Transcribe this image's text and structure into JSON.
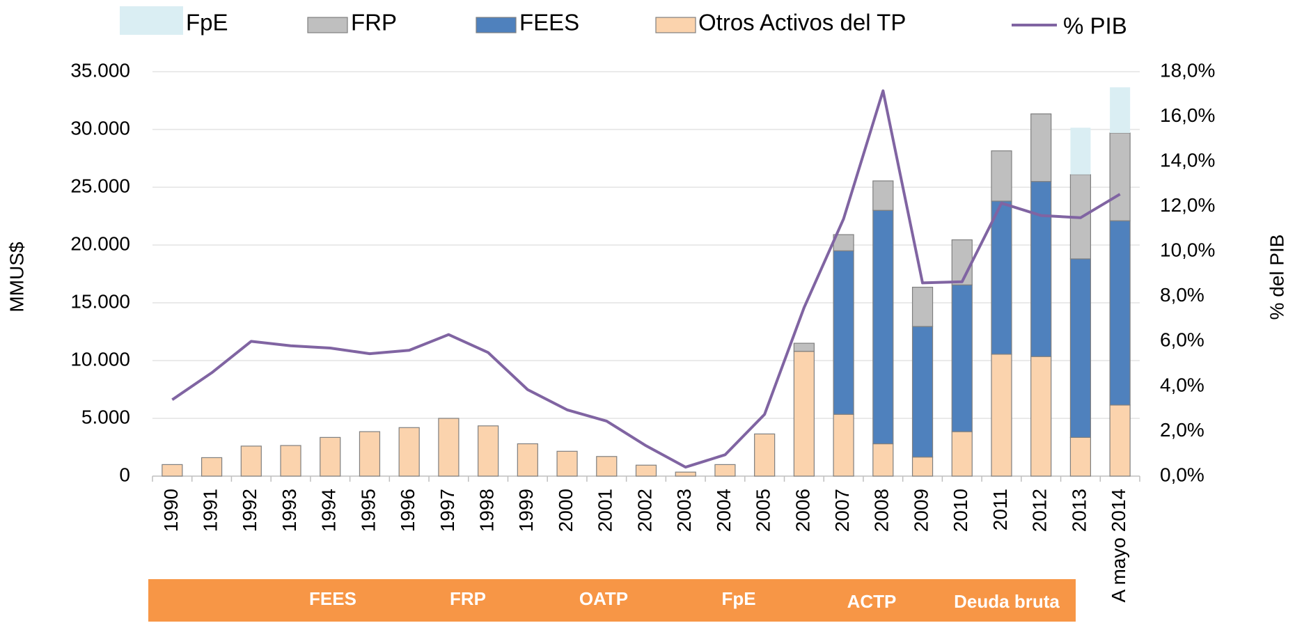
{
  "chart_data": {
    "type": "bar",
    "stacked": true,
    "y_label": "MMUS$",
    "y2_label": "% del PIB",
    "categories": [
      "1990",
      "1991",
      "1992",
      "1993",
      "1994",
      "1995",
      "1996",
      "1997",
      "1998",
      "1999",
      "2000",
      "2001",
      "2002",
      "2003",
      "2004",
      "2005",
      "2006",
      "2007",
      "2008",
      "2009",
      "2010",
      "2011",
      "2012",
      "2013",
      "A mayo 2014"
    ],
    "series": [
      {
        "name": "Otros Activos del TP",
        "color": "#fbd3ad",
        "values": [
          1000,
          1600,
          2600,
          2650,
          3350,
          3850,
          4200,
          5000,
          4350,
          2800,
          2150,
          1700,
          950,
          350,
          1000,
          3650,
          10800,
          5350,
          2800,
          1650,
          3850,
          10550,
          10350,
          3350,
          6150
        ]
      },
      {
        "name": "FEES",
        "color": "#4f81bd",
        "values": [
          null,
          null,
          null,
          null,
          null,
          null,
          null,
          null,
          null,
          null,
          null,
          null,
          null,
          null,
          null,
          null,
          null,
          14150,
          20200,
          11300,
          12700,
          13250,
          15150,
          15450,
          15950
        ]
      },
      {
        "name": "FRP",
        "color": "#bfbfbf",
        "values": [
          null,
          null,
          null,
          null,
          null,
          null,
          null,
          null,
          null,
          null,
          null,
          null,
          null,
          null,
          null,
          null,
          700,
          1400,
          2550,
          3400,
          3900,
          4350,
          5850,
          7300,
          7600
        ]
      },
      {
        "name": "FpE",
        "color": "#daeef3",
        "values": [
          null,
          null,
          null,
          null,
          null,
          null,
          null,
          null,
          null,
          null,
          null,
          null,
          null,
          null,
          null,
          null,
          null,
          null,
          null,
          null,
          null,
          null,
          null,
          4050,
          3950
        ]
      },
      {
        "name": "% PIB",
        "color": "#8064a2",
        "type": "line",
        "axis": "y2",
        "values": [
          3.4,
          4.6,
          6.0,
          5.8,
          5.7,
          5.45,
          5.6,
          6.3,
          5.5,
          3.85,
          2.95,
          2.45,
          1.35,
          0.4,
          0.95,
          2.75,
          7.5,
          11.45,
          17.15,
          8.6,
          8.65,
          12.15,
          11.6,
          11.5,
          12.55
        ]
      }
    ],
    "ylim": [
      0,
      35000
    ],
    "yticks": [
      0,
      {
        "value": 5000,
        "label": "5.000"
      },
      {
        "value": 10000,
        "label": "10.000"
      },
      {
        "value": 15000,
        "label": "15.000"
      },
      {
        "value": 20000,
        "label": "20.000"
      },
      {
        "value": 25000,
        "label": "25.000"
      },
      {
        "value": 30000,
        "label": "30.000"
      },
      {
        "value": 35000,
        "label": "35.000"
      }
    ],
    "y2lim": [
      0,
      18
    ],
    "y2ticks": [
      {
        "value": 0,
        "label": "0,0%"
      },
      {
        "value": 2,
        "label": "2,0%"
      },
      {
        "value": 4,
        "label": "4,0%"
      },
      {
        "value": 6,
        "label": "6,0%"
      },
      {
        "value": 8,
        "label": "8,0%"
      },
      {
        "value": 10,
        "label": "10,0%"
      },
      {
        "value": 12,
        "label": "12,0%"
      },
      {
        "value": 14,
        "label": "14,0%"
      },
      {
        "value": 16,
        "label": "16,0%"
      },
      {
        "value": 18,
        "label": "18,0%"
      }
    ],
    "grid": true,
    "legend": "top",
    "annotations": [
      "FEES",
      "FRP",
      "OATP",
      "FpE",
      "ACTP",
      "Deuda bruta"
    ]
  }
}
